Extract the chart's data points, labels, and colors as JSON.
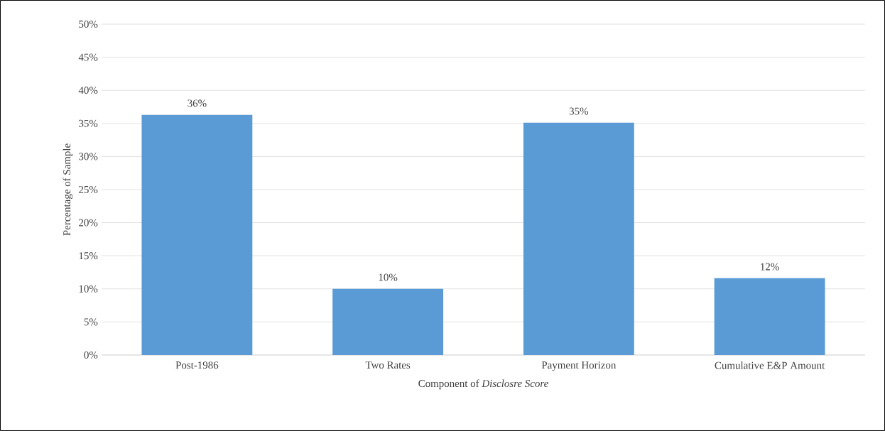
{
  "chart_data": {
    "type": "bar",
    "xlabel": "Component of *Disclosre Score*",
    "ylabel": "Percentage of Sample",
    "categories": [
      "Post-1986",
      "Two Rates",
      "Payment Horizon",
      "Cumulative E&P Amount"
    ],
    "values": [
      36.3,
      10.0,
      35.1,
      11.6
    ],
    "value_labels": [
      "36%",
      "10%",
      "35%",
      "12%"
    ],
    "color": "#5b9bd5",
    "ylim": [
      0,
      50
    ],
    "yticks": [
      {
        "value": 0,
        "label": "0%"
      },
      {
        "value": 5,
        "label": "5%"
      },
      {
        "value": 10,
        "label": "10%"
      },
      {
        "value": 15,
        "label": "15%"
      },
      {
        "value": 20,
        "label": "20%"
      },
      {
        "value": 25,
        "label": "25%"
      },
      {
        "value": 30,
        "label": "30%"
      },
      {
        "value": 35,
        "label": "35%"
      },
      {
        "value": 40,
        "label": "40%"
      },
      {
        "value": 45,
        "label": "45%"
      },
      {
        "value": 50,
        "label": "50%"
      }
    ],
    "grid": "y"
  }
}
